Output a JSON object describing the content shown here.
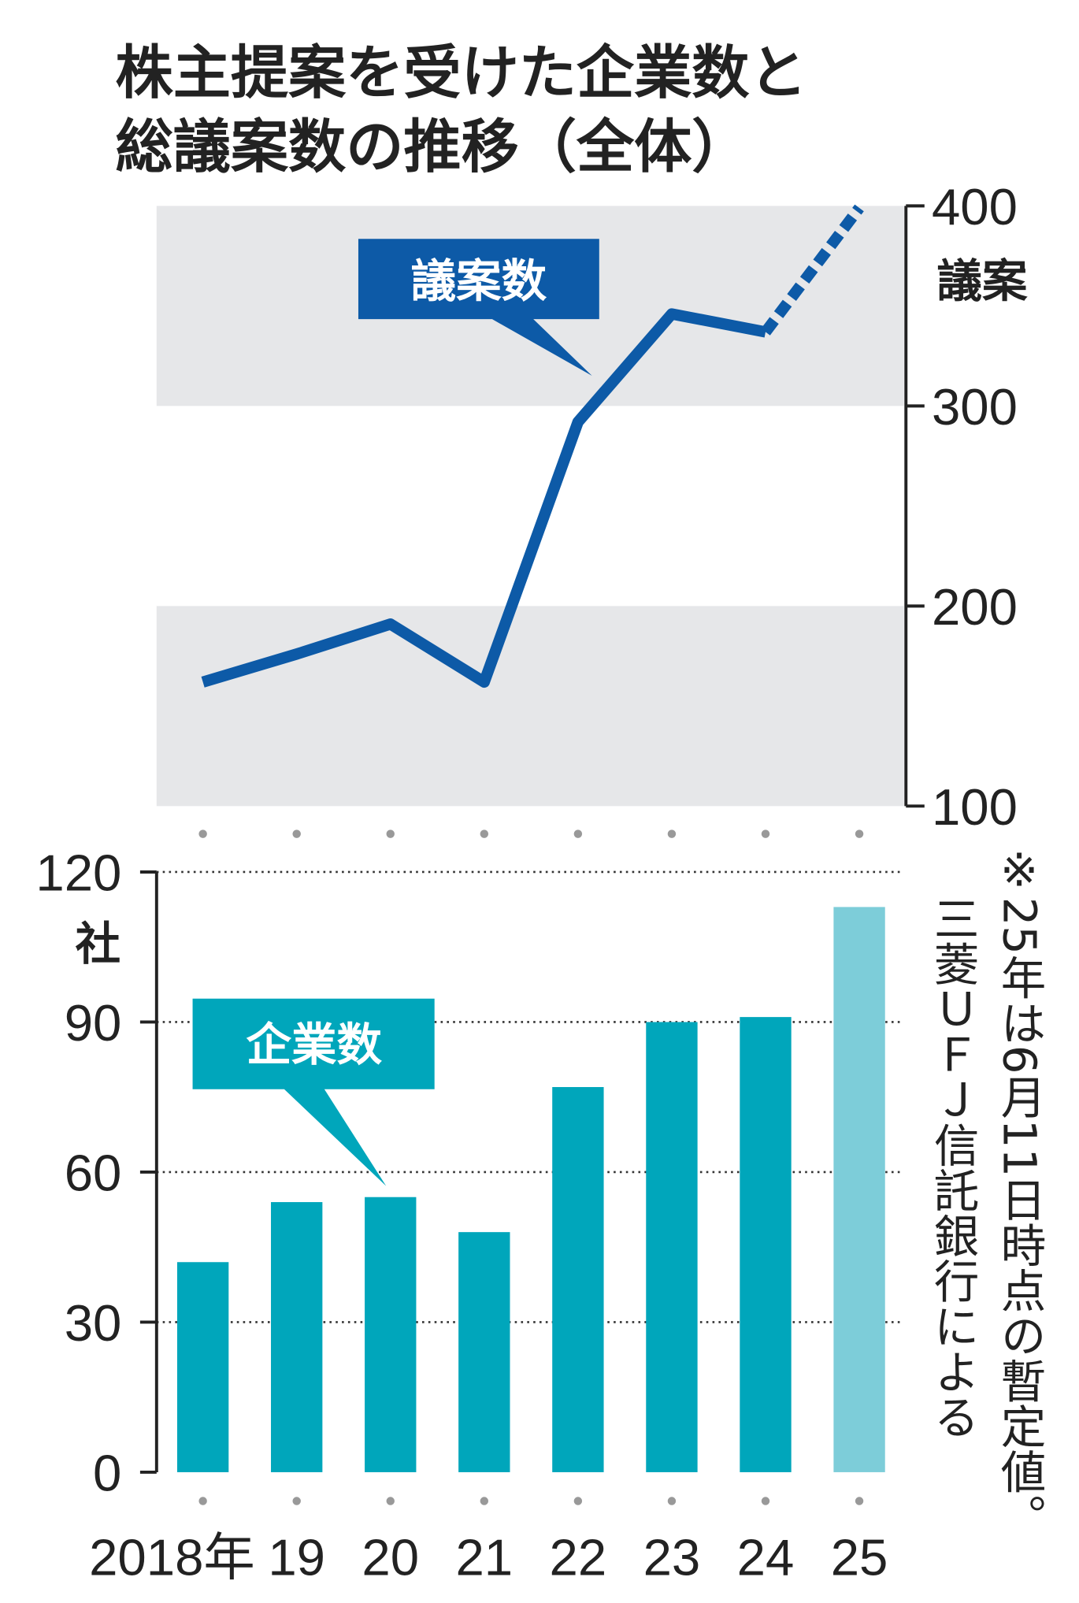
{
  "title": [
    "株主提案を受けた企業数と",
    "総議案数の推移（全体）"
  ],
  "note": [
    "※25年は6月11日時点の暫定値。",
    "三菱ＵＦＪ信託銀行による"
  ],
  "chart_data": [
    {
      "type": "line",
      "axis_label": "議案",
      "annotation": "議案数",
      "series": [
        {
          "name": "議案数",
          "color": "#0d5aa7",
          "values": [
            162,
            176,
            191,
            162,
            292,
            346,
            337,
            399
          ]
        }
      ],
      "dashed_last_segment": true,
      "band_shading": true,
      "ylim": [
        100,
        400
      ],
      "yticks": [
        100,
        200,
        300,
        400
      ]
    },
    {
      "type": "bar",
      "axis_label": "社",
      "annotation": "企業数",
      "categories": [
        "2018年",
        "19",
        "20",
        "21",
        "22",
        "23",
        "24",
        "25"
      ],
      "values": [
        42,
        54,
        55,
        48,
        77,
        90,
        91,
        113
      ],
      "colors": [
        "#00a6bb",
        "#00a6bb",
        "#00a6bb",
        "#00a6bb",
        "#00a6bb",
        "#00a6bb",
        "#00a6bb",
        "#7dcdd9"
      ],
      "ylim": [
        0,
        120
      ],
      "yticks": [
        0,
        30,
        60,
        90,
        120
      ],
      "grid": true
    }
  ]
}
